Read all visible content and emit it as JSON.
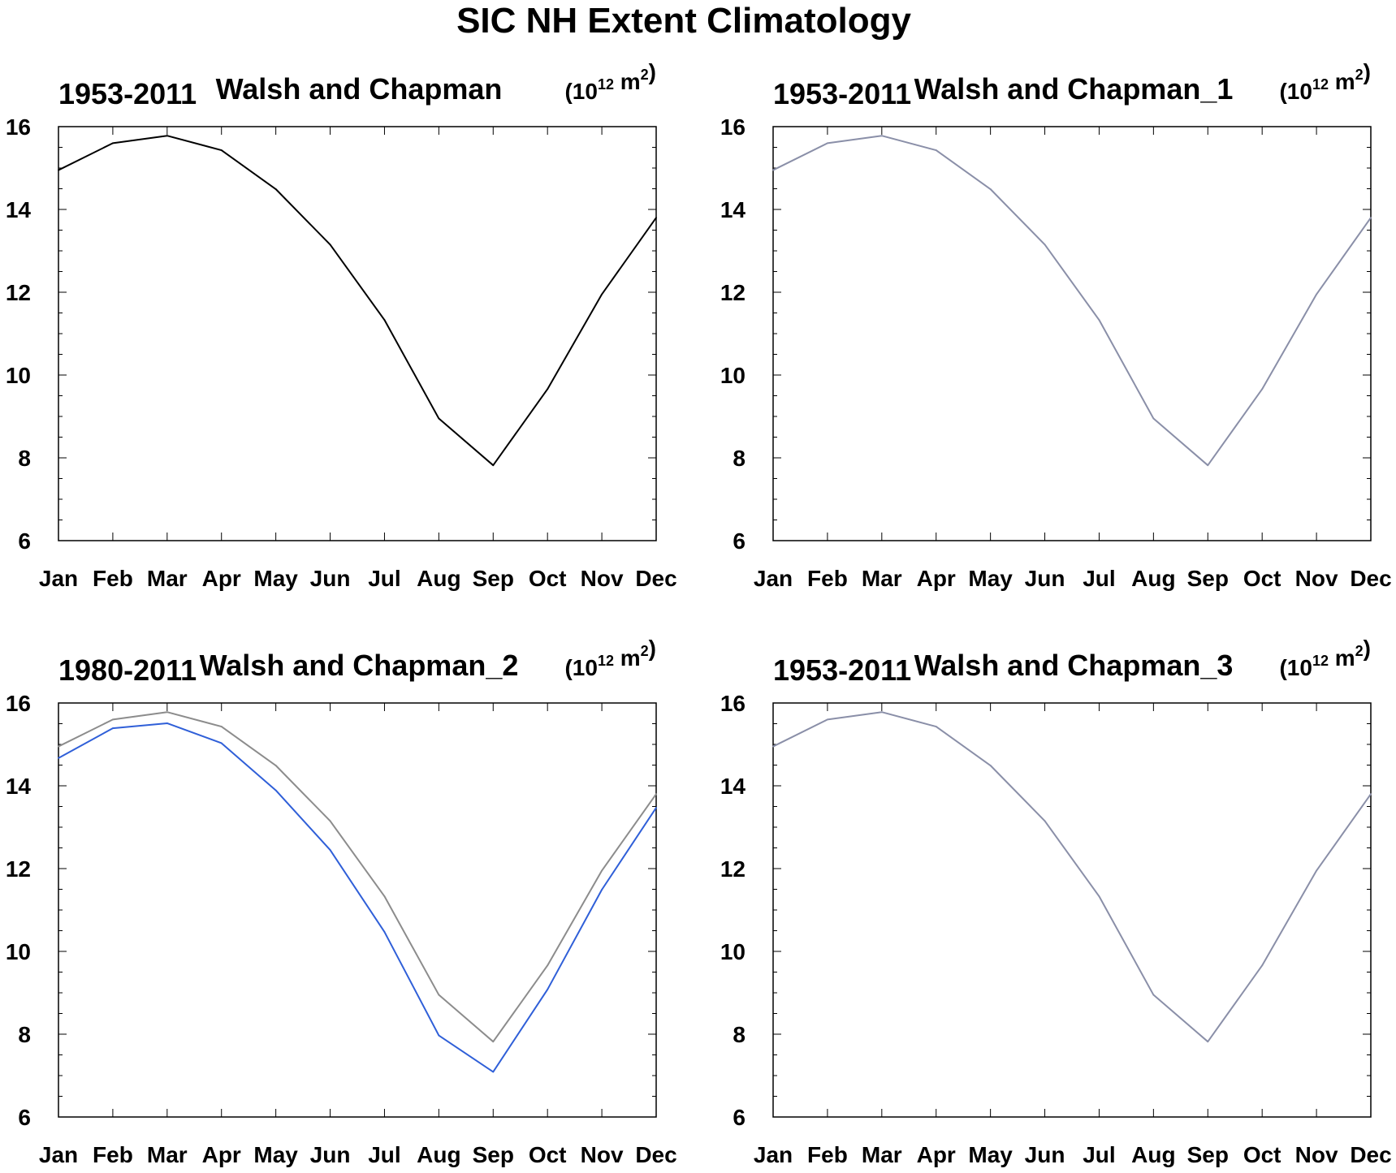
{
  "title": "SIC NH Extent Climatology",
  "chart_data": [
    {
      "type": "line",
      "title_left": "1953-2011",
      "title_center": "Walsh and Chapman",
      "units": {
        "base": "10",
        "exp": "12",
        "unit": "m",
        "unit_exp": "2"
      },
      "categories": [
        "Jan",
        "Feb",
        "Mar",
        "Apr",
        "May",
        "Jun",
        "Jul",
        "Aug",
        "Sep",
        "Oct",
        "Nov",
        "Dec"
      ],
      "ylim": [
        6,
        16
      ],
      "yticks": [
        6,
        8,
        10,
        12,
        14,
        16
      ],
      "series": [
        {
          "color": "#000000",
          "values": [
            14.95,
            15.6,
            15.78,
            15.43,
            14.49,
            13.15,
            11.33,
            8.95,
            7.82,
            9.66,
            11.95,
            13.8
          ]
        }
      ]
    },
    {
      "type": "line",
      "title_left": "1953-2011",
      "title_center": "Walsh and Chapman_1",
      "units": {
        "base": "10",
        "exp": "12",
        "unit": "m",
        "unit_exp": "2"
      },
      "categories": [
        "Jan",
        "Feb",
        "Mar",
        "Apr",
        "May",
        "Jun",
        "Jul",
        "Aug",
        "Sep",
        "Oct",
        "Nov",
        "Dec"
      ],
      "ylim": [
        6,
        16
      ],
      "yticks": [
        6,
        8,
        10,
        12,
        14,
        16
      ],
      "series": [
        {
          "color": "#8a8fa8",
          "values": [
            14.95,
            15.6,
            15.78,
            15.43,
            14.49,
            13.15,
            11.33,
            8.95,
            7.82,
            9.66,
            11.95,
            13.8
          ]
        }
      ]
    },
    {
      "type": "line",
      "title_left": "1980-2011",
      "title_center": "Walsh and Chapman_2",
      "units": {
        "base": "10",
        "exp": "12",
        "unit": "m",
        "unit_exp": "2"
      },
      "categories": [
        "Jan",
        "Feb",
        "Mar",
        "Apr",
        "May",
        "Jun",
        "Jul",
        "Aug",
        "Sep",
        "Oct",
        "Nov",
        "Dec"
      ],
      "ylim": [
        6,
        16
      ],
      "yticks": [
        6,
        8,
        10,
        12,
        14,
        16
      ],
      "series": [
        {
          "color": "#8c8c8c",
          "values": [
            14.95,
            15.6,
            15.78,
            15.43,
            14.49,
            13.15,
            11.33,
            8.95,
            7.82,
            9.66,
            11.95,
            13.8
          ]
        },
        {
          "color": "#2f5fd8",
          "values": [
            14.67,
            15.39,
            15.51,
            15.03,
            13.89,
            12.45,
            10.47,
            7.97,
            7.09,
            9.08,
            11.49,
            13.47
          ]
        }
      ]
    },
    {
      "type": "line",
      "title_left": "1953-2011",
      "title_center": "Walsh and Chapman_3",
      "units": {
        "base": "10",
        "exp": "12",
        "unit": "m",
        "unit_exp": "2"
      },
      "categories": [
        "Jan",
        "Feb",
        "Mar",
        "Apr",
        "May",
        "Jun",
        "Jul",
        "Aug",
        "Sep",
        "Oct",
        "Nov",
        "Dec"
      ],
      "ylim": [
        6,
        16
      ],
      "yticks": [
        6,
        8,
        10,
        12,
        14,
        16
      ],
      "series": [
        {
          "color": "#8a8fa8",
          "values": [
            14.95,
            15.6,
            15.78,
            15.43,
            14.49,
            13.15,
            11.33,
            8.95,
            7.82,
            9.66,
            11.95,
            13.8
          ]
        }
      ]
    }
  ]
}
